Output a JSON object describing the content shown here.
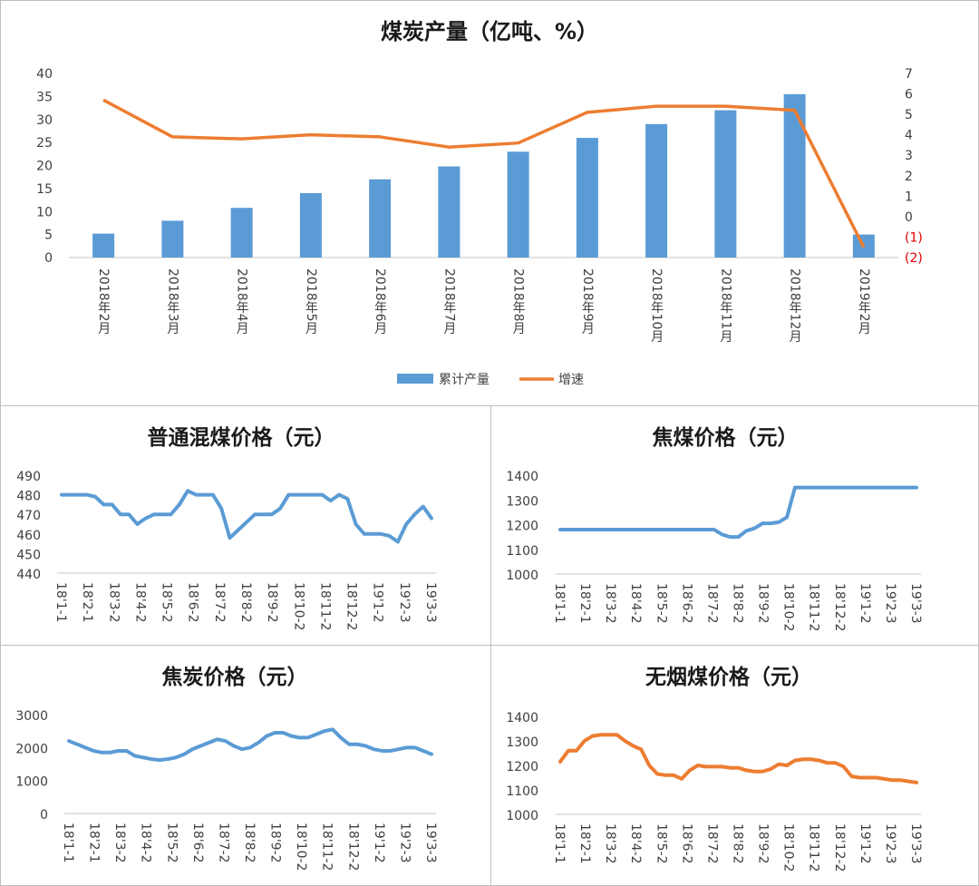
{
  "chart_data": [
    {
      "id": "production",
      "type": "bar+line",
      "title": "煤炭产量（亿吨、%）",
      "categories": [
        "2018年2月",
        "2018年3月",
        "2018年4月",
        "2018年5月",
        "2018年6月",
        "2018年7月",
        "2018年8月",
        "2018年9月",
        "2018年10月",
        "2018年11月",
        "2018年12月",
        "2019年2月"
      ],
      "series": [
        {
          "name": "累计产量",
          "type": "bar",
          "axis": "left",
          "color": "#5b9bd5",
          "values": [
            5.2,
            8,
            10.8,
            14,
            17,
            19.8,
            23,
            26,
            29,
            32,
            35.5,
            5
          ]
        },
        {
          "name": "增速",
          "type": "line",
          "axis": "right",
          "color": "#ed7d31",
          "values": [
            5.7,
            3.9,
            3.8,
            4.0,
            3.9,
            3.4,
            3.6,
            5.1,
            5.4,
            5.4,
            5.2,
            -1.5
          ]
        }
      ],
      "left_ylim": [
        0,
        40
      ],
      "left_ticks": [
        "0",
        "5",
        "10",
        "15",
        "20",
        "25",
        "30",
        "35",
        "40"
      ],
      "right_ylim": [
        -2,
        7
      ],
      "right_ticks": [
        "(2)",
        "(1)",
        "0",
        "1",
        "2",
        "3",
        "4",
        "5",
        "6",
        "7"
      ],
      "legend": "bottom"
    },
    {
      "id": "mixed-coal",
      "type": "line",
      "title": "普通混煤价格（元）",
      "color": "#5b9bd5",
      "ylim": [
        440,
        490
      ],
      "yticks": [
        "440",
        "450",
        "460",
        "470",
        "480",
        "490"
      ],
      "xticks": [
        "18'1-1",
        "18'2-1",
        "18'3-2",
        "18'4-2",
        "18'5-2",
        "18'6-2",
        "18'7-2",
        "18'8-2",
        "18'9-2",
        "18'10-2",
        "18'11-2",
        "18'12-2",
        "19'1-2",
        "19'2-3",
        "19'3-3"
      ],
      "values": [
        480,
        480,
        480,
        480,
        479,
        475,
        475,
        470,
        470,
        465,
        468,
        470,
        470,
        470,
        475,
        482,
        480,
        480,
        480,
        473,
        458,
        462,
        466,
        470,
        470,
        470,
        473,
        480,
        480,
        480,
        480,
        480,
        477,
        480,
        478,
        465,
        460,
        460,
        460,
        459,
        456,
        465,
        470,
        474,
        468
      ]
    },
    {
      "id": "coking-coal",
      "type": "line",
      "title": "焦煤价格（元）",
      "color": "#5b9bd5",
      "ylim": [
        1000,
        1400
      ],
      "yticks": [
        "1000",
        "1100",
        "1200",
        "1300",
        "1400"
      ],
      "xticks": [
        "18'1-1",
        "18'2-1",
        "18'3-2",
        "18'4-2",
        "18'5-2",
        "18'6-2",
        "18'7-2",
        "18'8-2",
        "18'9-2",
        "18'10-2",
        "18'11-2",
        "18'12-2",
        "19'1-2",
        "19'2-3",
        "19'3-3"
      ],
      "values": [
        1180,
        1180,
        1180,
        1180,
        1180,
        1180,
        1180,
        1180,
        1180,
        1180,
        1180,
        1180,
        1180,
        1180,
        1180,
        1180,
        1180,
        1180,
        1180,
        1180,
        1160,
        1150,
        1150,
        1175,
        1185,
        1205,
        1205,
        1210,
        1230,
        1350,
        1350,
        1350,
        1350,
        1350,
        1350,
        1350,
        1350,
        1350,
        1350,
        1350,
        1350,
        1350,
        1350,
        1350,
        1350
      ]
    },
    {
      "id": "coke",
      "type": "line",
      "title": "焦炭价格（元）",
      "color": "#5b9bd5",
      "ylim": [
        0,
        3000
      ],
      "yticks": [
        "0",
        "1000",
        "2000",
        "3000"
      ],
      "xticks": [
        "18'1-1",
        "18'2-1",
        "18'3-2",
        "18'4-2",
        "18'5-2",
        "18'6-2",
        "18'7-2",
        "18'8-2",
        "18'9-2",
        "18'10-2",
        "18'11-2",
        "18'12-2",
        "19'1-2",
        "19'2-3",
        "19'3-3"
      ],
      "values": [
        2200,
        2100,
        2000,
        1900,
        1850,
        1850,
        1900,
        1900,
        1750,
        1700,
        1650,
        1620,
        1650,
        1700,
        1800,
        1950,
        2050,
        2150,
        2250,
        2200,
        2050,
        1950,
        2000,
        2150,
        2350,
        2450,
        2450,
        2350,
        2300,
        2300,
        2400,
        2500,
        2550,
        2300,
        2100,
        2100,
        2050,
        1950,
        1900,
        1900,
        1950,
        2000,
        2000,
        1900,
        1800
      ]
    },
    {
      "id": "anthracite",
      "type": "line",
      "title": "无烟煤价格（元）",
      "color": "#ed7d31",
      "ylim": [
        1000,
        1400
      ],
      "yticks": [
        "1000",
        "1100",
        "1200",
        "1300",
        "1400"
      ],
      "xticks": [
        "18'1-1",
        "18'2-1",
        "18'3-2",
        "18'4-2",
        "18'5-2",
        "18'6-2",
        "18'7-2",
        "18'8-2",
        "18'9-2",
        "18'10-2",
        "18'11-2",
        "18'12-2",
        "19'1-2",
        "19'2-3",
        "19'3-3"
      ],
      "values": [
        1215,
        1260,
        1260,
        1300,
        1320,
        1325,
        1325,
        1325,
        1300,
        1280,
        1265,
        1200,
        1165,
        1160,
        1160,
        1145,
        1180,
        1200,
        1195,
        1195,
        1195,
        1190,
        1190,
        1180,
        1175,
        1175,
        1185,
        1205,
        1200,
        1220,
        1225,
        1225,
        1220,
        1210,
        1210,
        1195,
        1155,
        1150,
        1150,
        1150,
        1145,
        1140,
        1140,
        1135,
        1130
      ]
    }
  ]
}
